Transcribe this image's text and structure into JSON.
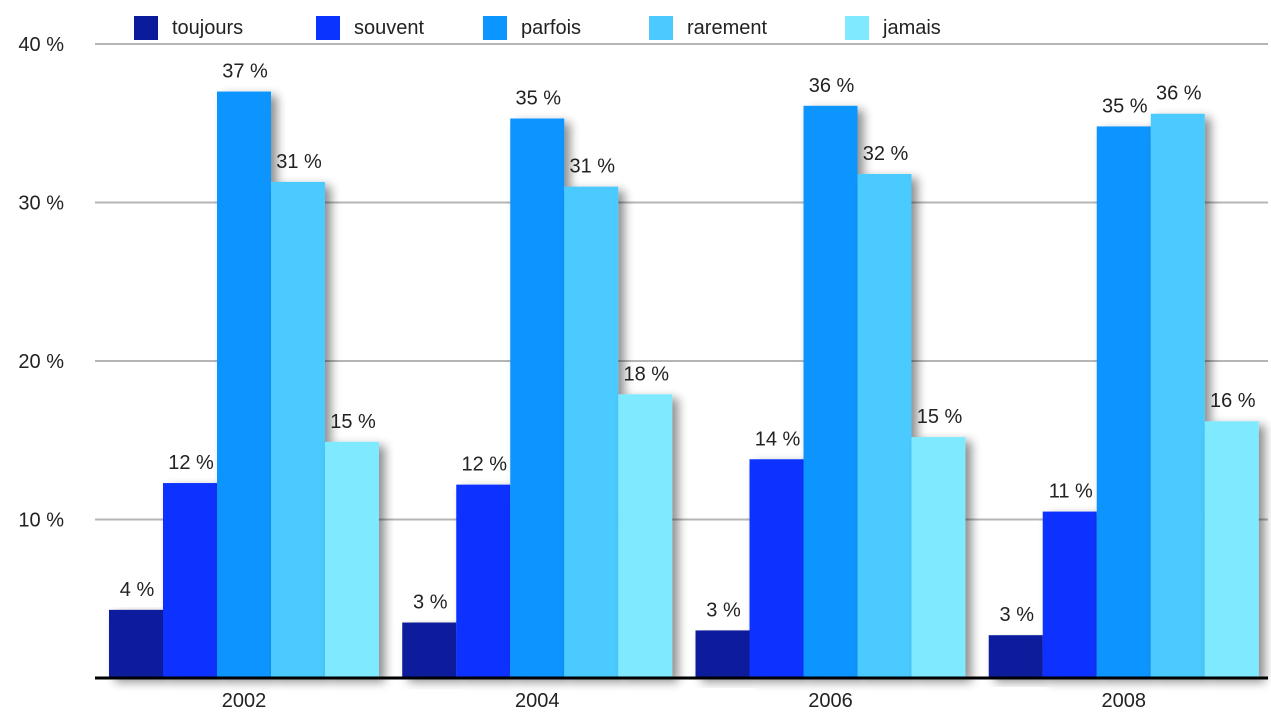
{
  "chart_data": {
    "type": "bar",
    "title": "",
    "xlabel": "",
    "ylabel": "",
    "ylim": [
      0,
      40
    ],
    "y_ticks": [
      "10 %",
      "20 %",
      "30 %",
      "40 %"
    ],
    "y_tick_values": [
      10,
      20,
      30,
      40
    ],
    "categories": [
      "2002",
      "2004",
      "2006",
      "2008"
    ],
    "grid": true,
    "legend_position": "top",
    "series": [
      {
        "name": "toujours",
        "color": "#0a1c9c",
        "values": [
          4.3,
          3.5,
          3.0,
          2.7
        ],
        "labels": [
          "4 %",
          "3 %",
          "3 %",
          "3 %"
        ]
      },
      {
        "name": "souvent",
        "color": "#0a33ff",
        "values": [
          12.3,
          12.2,
          13.8,
          10.5
        ],
        "labels": [
          "12 %",
          "12 %",
          "14 %",
          "11 %"
        ]
      },
      {
        "name": "parfois",
        "color": "#0a95ff",
        "values": [
          37.0,
          35.3,
          36.1,
          34.8
        ],
        "labels": [
          "37 %",
          "35 %",
          "36 %",
          "35 %"
        ]
      },
      {
        "name": "rarement",
        "color": "#4ccaff",
        "values": [
          31.3,
          31.0,
          31.8,
          35.6
        ],
        "labels": [
          "31 %",
          "31 %",
          "32 %",
          "36 %"
        ]
      },
      {
        "name": "jamais",
        "color": "#7feaff",
        "values": [
          14.9,
          17.9,
          15.2,
          16.2
        ],
        "labels": [
          "15 %",
          "18 %",
          "15 %",
          "16 %"
        ]
      }
    ]
  }
}
